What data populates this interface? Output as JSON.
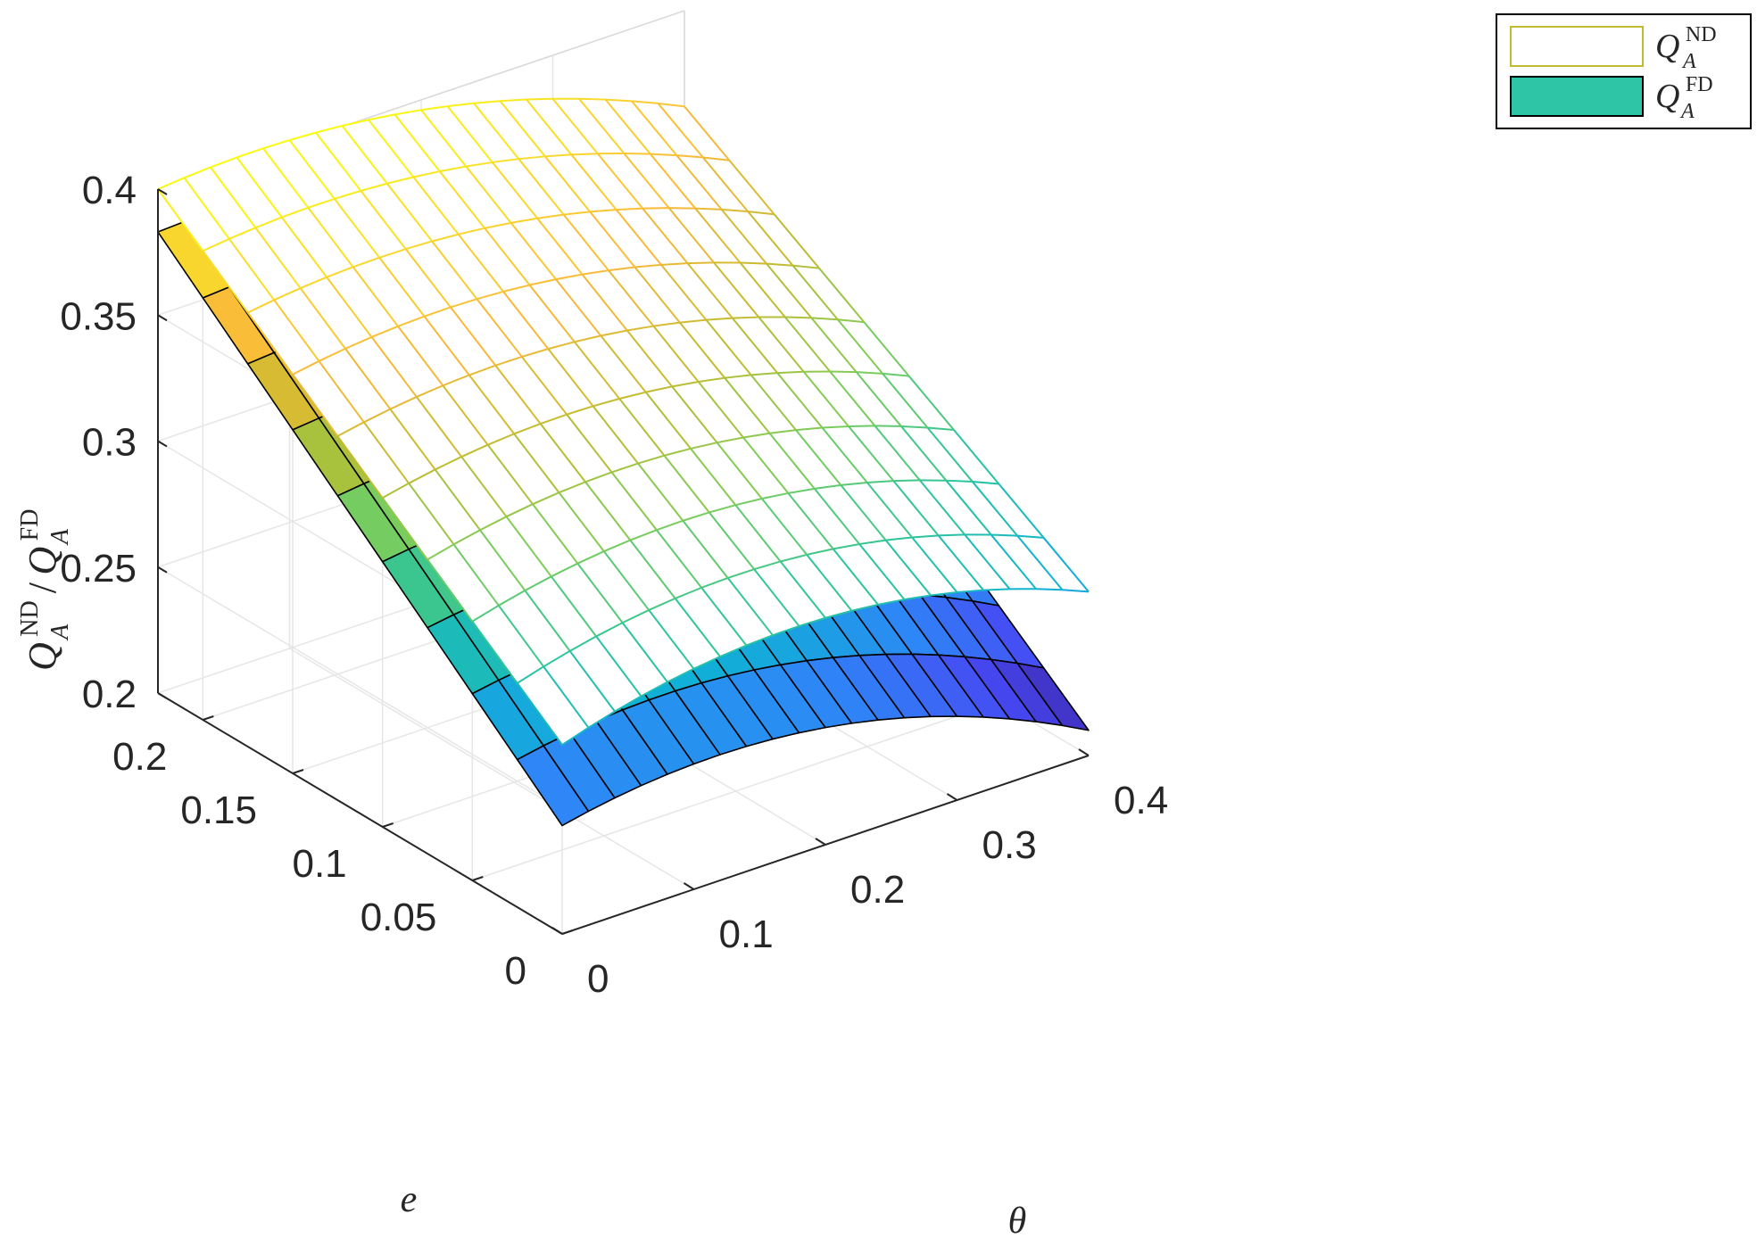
{
  "chart_data": {
    "type": "surface",
    "xlabel": "θ",
    "ylabel": "e",
    "zlabel": {
      "parts": [
        "Q",
        "ND",
        "A",
        "/",
        "Q",
        "FD",
        "A"
      ]
    },
    "xlim": [
      0,
      0.4
    ],
    "ylim": [
      0,
      0.225
    ],
    "zlim": [
      0.2,
      0.4
    ],
    "x_ticks": [
      0,
      0.1,
      0.2,
      0.3,
      0.4
    ],
    "x_tick_labels": [
      "0",
      "0.1",
      "0.2",
      "0.3",
      "0.4"
    ],
    "y_ticks": [
      0,
      0.05,
      0.1,
      0.15,
      0.2
    ],
    "y_tick_labels": [
      "0",
      "0.05",
      "0.1",
      "0.15",
      "0.2"
    ],
    "z_ticks": [
      0.2,
      0.25,
      0.3,
      0.35,
      0.4
    ],
    "z_tick_labels": [
      "0.2",
      "0.25",
      "0.3",
      "0.35",
      "0.4"
    ],
    "grid": true,
    "legend_position": "top-right",
    "colormap": "parula",
    "colormap_stops": [
      "#3e26a8",
      "#4748f2",
      "#2e87f7",
      "#0eb3d4",
      "#2dc59a",
      "#7ccd5a",
      "#c1bc2f",
      "#fab93a",
      "#f9dc2a",
      "#f9fb0e"
    ],
    "series": [
      {
        "name": "Q_A^ND",
        "legend": [
          "Q",
          "ND",
          "A"
        ],
        "style": "mesh",
        "legend_swatch_fill": "#ffffff",
        "legend_swatch_stroke": "#c1bc2f",
        "theta_samples": [
          0,
          0.02,
          0.04,
          0.06,
          0.08,
          0.1,
          0.12,
          0.14,
          0.16,
          0.18,
          0.2,
          0.22,
          0.24,
          0.26,
          0.28,
          0.3,
          0.32,
          0.34,
          0.36,
          0.38,
          0.4
        ],
        "e_samples": [
          0,
          0.025,
          0.05,
          0.075,
          0.1,
          0.125,
          0.15,
          0.175,
          0.2,
          0.225
        ],
        "z_at_theta0_e0": 0.275,
        "z_at_theta0_e_max": 0.4,
        "z_at_theta_max_e0": 0.265,
        "z_at_theta_max_e_max": 0.362
      },
      {
        "name": "Q_A^FD",
        "legend": [
          "Q",
          "FD",
          "A"
        ],
        "style": "faceted",
        "legend_swatch_fill": "#2dc5a5",
        "legend_swatch_stroke": "#000000",
        "theta_samples": [
          0,
          0.02,
          0.04,
          0.06,
          0.08,
          0.1,
          0.12,
          0.14,
          0.16,
          0.18,
          0.2,
          0.22,
          0.24,
          0.26,
          0.28,
          0.3,
          0.32,
          0.34,
          0.36,
          0.38,
          0.4
        ],
        "e_samples": [
          0,
          0.025,
          0.05,
          0.075,
          0.1,
          0.125,
          0.15,
          0.175,
          0.2,
          0.225
        ],
        "z_at_theta0_e0": 0.243,
        "z_at_theta0_e_max": 0.383,
        "z_at_theta_max_e0": 0.21,
        "z_at_theta_max_e_max": 0.337
      }
    ]
  }
}
